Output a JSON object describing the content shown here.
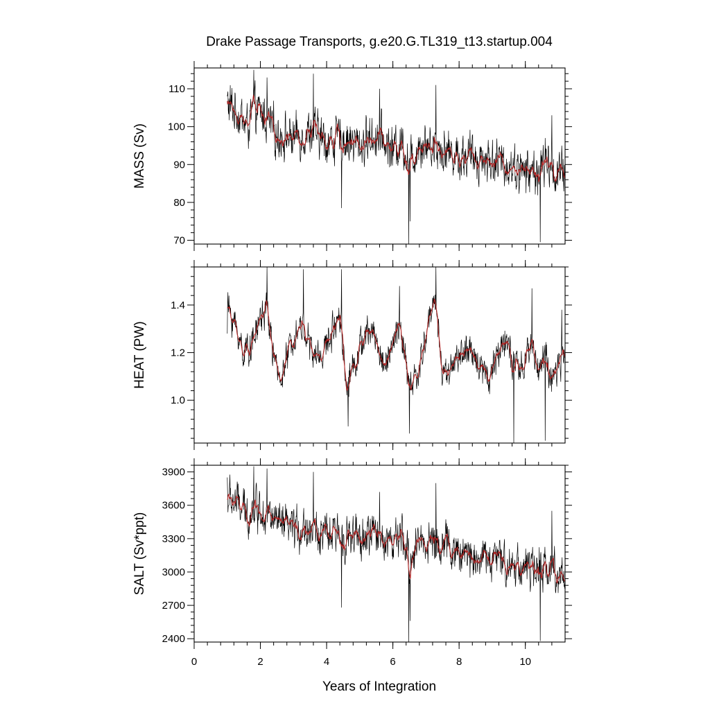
{
  "chart_data": {
    "type": "line",
    "title": "Drake Passage Transports, g.e20.G.TL319_t13.startup.004",
    "xlabel": "Years of Integration",
    "xlim": [
      0,
      11.2
    ],
    "xticks": [
      0,
      2,
      4,
      6,
      8,
      10
    ],
    "grid": false,
    "legend": "none",
    "series_colors": {
      "raw": "#000000",
      "smoothed": "#b22222"
    },
    "panels": [
      {
        "name": "mass",
        "ylabel": "MASS (Sv)",
        "ylim": [
          69,
          115.5
        ],
        "yticks": [
          70,
          80,
          90,
          100,
          110
        ],
        "anchors": {
          "x": [
            1.0,
            1.3,
            1.6,
            1.8,
            2.1,
            2.5,
            3.0,
            3.5,
            4.0,
            4.5,
            5.0,
            5.5,
            6.0,
            6.3,
            6.5,
            6.8,
            7.2,
            7.6,
            8.0,
            8.5,
            9.0,
            9.5,
            10.0,
            10.4,
            10.7,
            11.0,
            11.2
          ],
          "y": [
            106,
            104,
            100,
            104,
            103,
            98,
            97,
            99,
            96,
            97,
            95,
            98,
            94,
            96,
            90,
            96,
            95,
            94,
            92,
            92,
            91,
            90,
            88,
            88,
            90,
            87,
            88
          ]
        },
        "amplitude": 6.0,
        "extremes": [
          [
            1.0,
            108
          ],
          [
            1.8,
            115
          ],
          [
            2.2,
            113
          ],
          [
            3.6,
            114
          ],
          [
            4.45,
            78.5
          ],
          [
            5.6,
            110
          ],
          [
            6.48,
            69
          ],
          [
            6.52,
            75
          ],
          [
            7.3,
            111
          ],
          [
            10.45,
            69.5
          ],
          [
            10.6,
            97
          ],
          [
            10.8,
            103
          ]
        ]
      },
      {
        "name": "heat",
        "ylabel": "HEAT (PW)",
        "ylim": [
          0.82,
          1.56
        ],
        "yticks": [
          1.0,
          1.2,
          1.4
        ],
        "anchors": {
          "x": [
            1.0,
            1.2,
            1.5,
            1.8,
            2.0,
            2.2,
            2.5,
            2.7,
            3.0,
            3.3,
            3.6,
            3.9,
            4.2,
            4.4,
            4.6,
            4.8,
            5.1,
            5.4,
            5.7,
            6.0,
            6.2,
            6.5,
            6.8,
            7.1,
            7.3,
            7.5,
            7.8,
            8.1,
            8.5,
            8.9,
            9.2,
            9.4,
            9.6,
            9.9,
            10.2,
            10.4,
            10.6,
            10.8,
            11.0,
            11.2
          ],
          "y": [
            1.4,
            1.33,
            1.2,
            1.25,
            1.35,
            1.38,
            1.1,
            1.12,
            1.28,
            1.32,
            1.18,
            1.2,
            1.3,
            1.38,
            1.05,
            1.15,
            1.25,
            1.3,
            1.15,
            1.22,
            1.33,
            1.05,
            1.12,
            1.35,
            1.42,
            1.1,
            1.15,
            1.2,
            1.18,
            1.1,
            1.2,
            1.28,
            1.15,
            1.12,
            1.25,
            1.12,
            1.2,
            1.05,
            1.15,
            1.18
          ]
        },
        "amplitude": 0.07,
        "extremes": [
          [
            1.0,
            1.28
          ],
          [
            2.2,
            1.56
          ],
          [
            3.3,
            1.55
          ],
          [
            4.45,
            1.55
          ],
          [
            4.65,
            0.89
          ],
          [
            6.2,
            1.48
          ],
          [
            6.5,
            0.86
          ],
          [
            7.3,
            1.56
          ],
          [
            9.65,
            0.82
          ],
          [
            10.2,
            1.47
          ],
          [
            10.6,
            0.83
          ],
          [
            11.1,
            1.38
          ]
        ]
      },
      {
        "name": "salt",
        "ylabel": "SALT (Sv*ppt)",
        "ylim": [
          2370,
          3960
        ],
        "yticks": [
          2400,
          2700,
          3000,
          3300,
          3600,
          3900
        ],
        "anchors": {
          "x": [
            1.0,
            1.3,
            1.6,
            1.8,
            2.1,
            2.5,
            3.0,
            3.5,
            4.0,
            4.5,
            5.0,
            5.5,
            6.0,
            6.3,
            6.5,
            6.8,
            7.2,
            7.6,
            8.0,
            8.5,
            9.0,
            9.5,
            10.0,
            10.4,
            10.7,
            11.0,
            11.2
          ],
          "y": [
            3660,
            3620,
            3500,
            3600,
            3560,
            3420,
            3380,
            3400,
            3320,
            3340,
            3280,
            3360,
            3260,
            3300,
            3100,
            3290,
            3270,
            3240,
            3160,
            3150,
            3120,
            3080,
            3050,
            3000,
            3060,
            2980,
            3000
          ]
        },
        "amplitude": 190,
        "extremes": [
          [
            1.0,
            3850
          ],
          [
            1.8,
            3950
          ],
          [
            2.2,
            3930
          ],
          [
            3.6,
            3900
          ],
          [
            4.45,
            2680
          ],
          [
            5.6,
            3720
          ],
          [
            6.48,
            2370
          ],
          [
            6.52,
            2560
          ],
          [
            7.3,
            3800
          ],
          [
            10.45,
            2380
          ],
          [
            10.6,
            3120
          ],
          [
            10.8,
            3550
          ]
        ]
      }
    ]
  }
}
